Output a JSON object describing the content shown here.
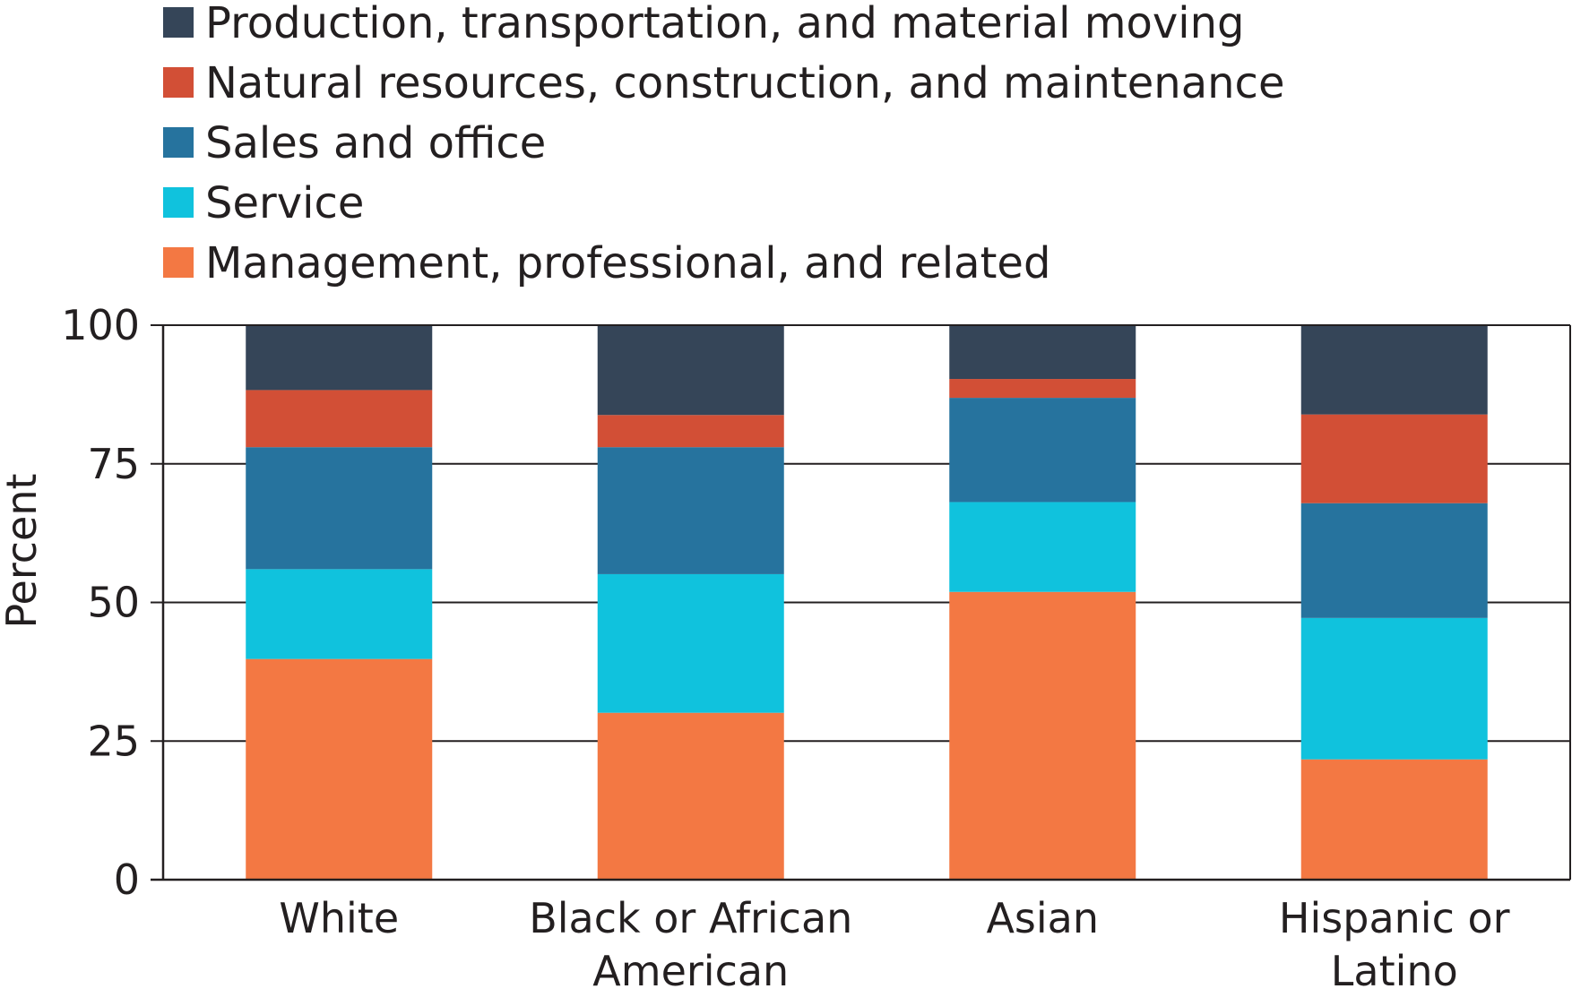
{
  "chart_data": {
    "type": "bar",
    "stacked": true,
    "title": "",
    "xlabel": "",
    "ylabel": "Percent",
    "ylim": [
      0,
      100
    ],
    "yticks": [
      "0",
      "25",
      "50",
      "75",
      "100"
    ],
    "grid": true,
    "legend_position": "top-left",
    "categories": [
      [
        "White"
      ],
      [
        "Black or African",
        "American"
      ],
      [
        "Asian"
      ],
      [
        "Hispanic or",
        "Latino"
      ]
    ],
    "series": [
      {
        "name": "Management, professional, and related",
        "color": "#f37843",
        "values": [
          39.8,
          30.1,
          51.9,
          21.7
        ]
      },
      {
        "name": "Service",
        "color": "#10c2dd",
        "values": [
          16.2,
          25.0,
          16.2,
          25.5
        ]
      },
      {
        "name": "Sales and office",
        "color": "#26739e",
        "values": [
          22.0,
          22.9,
          18.8,
          20.7
        ]
      },
      {
        "name": "Natural resources, construction, and maintenance",
        "color": "#d24f36",
        "values": [
          10.3,
          5.8,
          3.4,
          16.0
        ]
      },
      {
        "name": "Production, transportation, and material moving",
        "color": "#354558",
        "values": [
          11.7,
          16.2,
          9.7,
          16.1
        ]
      }
    ]
  }
}
